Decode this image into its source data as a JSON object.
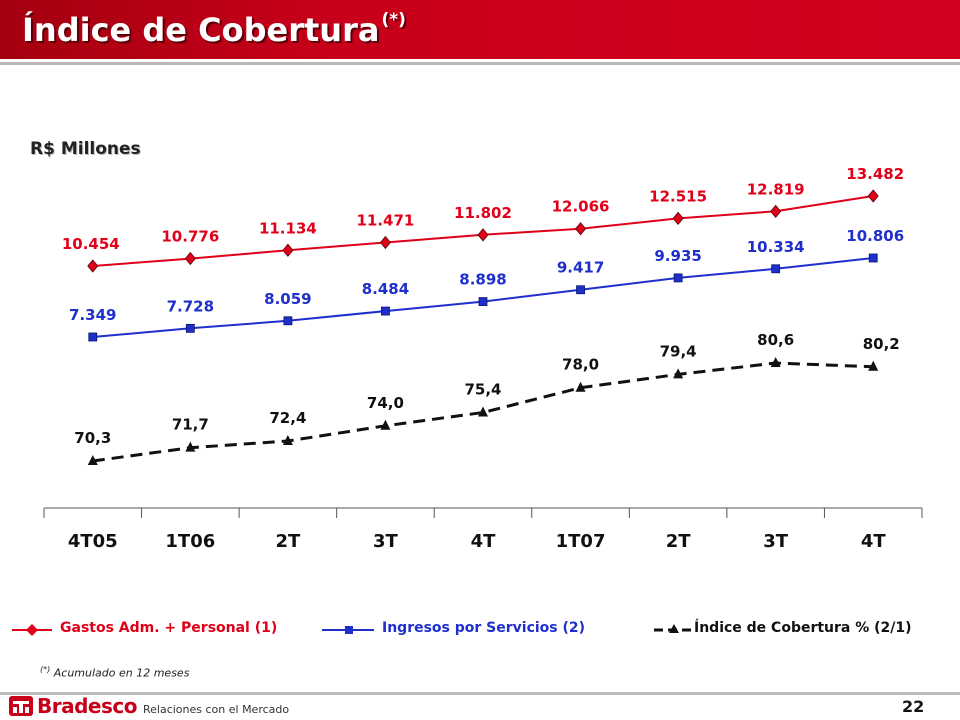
{
  "slide": {
    "title": "Índice de Cobertura",
    "title_sup": "(*)",
    "unit": "R$ Millones",
    "footnote_sup": "(*)",
    "footnote": "Acumulado en 12 meses",
    "brand": "Bradesco",
    "brand_sub": "Relaciones con el Mercado",
    "page": "22",
    "logo_icon": "bradesco-tree-logo-icon"
  },
  "chart_data": {
    "type": "line",
    "categories": [
      "4T05",
      "1T06",
      "2T",
      "3T",
      "4T",
      "1T07",
      "2T",
      "3T",
      "4T"
    ],
    "series": [
      {
        "name": "Gastos Adm. + Personal (1)",
        "color": "#e0001a",
        "marker": "diamond",
        "line_style": "solid",
        "values": [
          10454,
          10776,
          11134,
          11471,
          11802,
          12066,
          12515,
          12819,
          13482
        ],
        "labels": [
          "10.454",
          "10.776",
          "11.134",
          "11.471",
          "11.802",
          "12.066",
          "12.515",
          "12.819",
          "13.482"
        ]
      },
      {
        "name": "Ingresos por Servicios (2)",
        "color": "#1f2fcc",
        "marker": "square",
        "line_style": "solid",
        "values": [
          7349,
          7728,
          8059,
          8484,
          8898,
          9417,
          9935,
          10334,
          10806
        ],
        "labels": [
          "7.349",
          "7.728",
          "8.059",
          "8.484",
          "8.898",
          "9.417",
          "9.935",
          "10.334",
          "10.806"
        ]
      },
      {
        "name": "Índice de Cobertura % (2/1)",
        "color": "#111111",
        "marker": "triangle",
        "line_style": "dashed",
        "values": [
          70.3,
          71.7,
          72.4,
          74.0,
          75.4,
          78.0,
          79.4,
          80.6,
          80.2
        ],
        "labels": [
          "70,3",
          "71,7",
          "72,4",
          "74,0",
          "75,4",
          "78,0",
          "79,4",
          "80,6",
          "80,2"
        ]
      }
    ],
    "legend": "bottom",
    "grid": false
  }
}
